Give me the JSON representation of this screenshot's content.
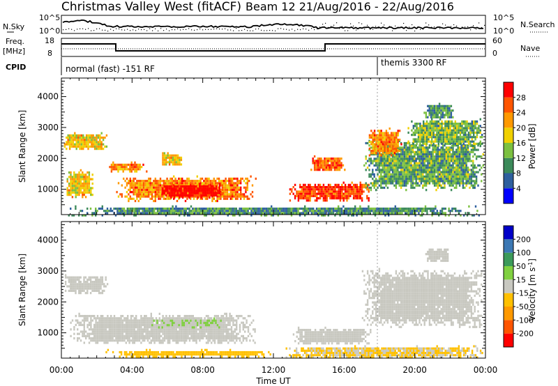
{
  "header": {
    "station": "Christmas Valley West (fitACF)",
    "beam_date": "Beam 12 21/Aug/2016 - 22/Aug/2016"
  },
  "summary_panels": {
    "nsky_label": "N.Sky",
    "nsky_ticks": [
      "10^5",
      "10^0"
    ],
    "nsearch_label": "N.Search",
    "nsearch_ticks": [
      "10^5",
      "10^0"
    ],
    "freq_label_1": "Freq.",
    "freq_label_2": "[MHz]",
    "freq_ticks": [
      "18",
      "8"
    ],
    "nave_label": "Nave",
    "nave_ticks": [
      "60",
      "0"
    ],
    "cpid_label": "CPID",
    "cpid_segments": [
      "normal (fast) -151 RF",
      "themis 3300 RF"
    ]
  },
  "colors": {
    "power_scale": [
      "#0000ff",
      "#2e5f9e",
      "#3c8a5a",
      "#7cc040",
      "#f0d000",
      "#ff9900",
      "#ff5500",
      "#ff0000"
    ],
    "velocity_scale": [
      "#ff0000",
      "#ff5500",
      "#ff9900",
      "#ffc000",
      "#c8c8c0",
      "#80d040",
      "#3c9a5a",
      "#3c78b4",
      "#0000c8"
    ]
  },
  "chart_data": [
    {
      "type": "heatmap",
      "panel": "power",
      "x": {
        "label": "Time UT",
        "ticks": [
          "00:00",
          "04:00",
          "08:00",
          "12:00",
          "16:00",
          "20:00",
          "00:00"
        ],
        "range_hours": [
          0,
          24
        ]
      },
      "y": {
        "label": "Slant Range [km]",
        "ticks": [
          1000,
          2000,
          3000,
          4000
        ],
        "range": [
          180,
          4600
        ]
      },
      "colorbar": {
        "label": "Power [dB]",
        "ticks": [
          "4",
          "8",
          "12",
          "16",
          "20",
          "24",
          "28"
        ],
        "range": [
          0,
          30
        ]
      },
      "regions": [
        {
          "t0": 0.05,
          "t1": 2.6,
          "r0": 2300,
          "r1": 2850,
          "v": 18
        },
        {
          "t0": 0.2,
          "t1": 1.8,
          "r0": 750,
          "r1": 1650,
          "v": 18
        },
        {
          "t0": 2.6,
          "t1": 4.8,
          "r0": 1600,
          "r1": 1900,
          "v": 22
        },
        {
          "t0": 3.0,
          "t1": 11.0,
          "r0": 650,
          "r1": 1450,
          "v": 22
        },
        {
          "t0": 5.5,
          "t1": 9.2,
          "r0": 750,
          "r1": 1200,
          "v": 30
        },
        {
          "t0": 5.6,
          "t1": 6.8,
          "r0": 1800,
          "r1": 2200,
          "v": 18
        },
        {
          "t0": 12.8,
          "t1": 17.5,
          "r0": 650,
          "r1": 1250,
          "v": 26
        },
        {
          "t0": 14.0,
          "t1": 16.0,
          "r0": 1600,
          "r1": 2100,
          "v": 24
        },
        {
          "t0": 17.0,
          "t1": 23.9,
          "r0": 1000,
          "r1": 2600,
          "v": 11
        },
        {
          "t0": 17.3,
          "t1": 19.2,
          "r0": 2100,
          "r1": 3000,
          "v": 22
        },
        {
          "t0": 19.5,
          "t1": 23.9,
          "r0": 2400,
          "r1": 3300,
          "v": 12
        },
        {
          "t0": 20.5,
          "t1": 22.2,
          "r0": 3300,
          "r1": 3800,
          "v": 10
        },
        {
          "t0": 0.0,
          "t1": 24.0,
          "r0": 180,
          "r1": 480,
          "v": 9
        }
      ]
    },
    {
      "type": "heatmap",
      "panel": "velocity",
      "x": {
        "label": "Time UT",
        "ticks": [
          "00:00",
          "04:00",
          "08:00",
          "12:00",
          "16:00",
          "20:00",
          "00:00"
        ],
        "range_hours": [
          0,
          24
        ]
      },
      "y": {
        "label": "Slant Range [km]",
        "ticks": [
          1000,
          2000,
          3000,
          4000
        ],
        "range": [
          180,
          4600
        ]
      },
      "colorbar": {
        "label": "Velocity [m s^-1]",
        "ticks": [
          "200",
          "100",
          "50",
          "15",
          "-15",
          "-50",
          "-100",
          "-200"
        ],
        "range": [
          -250,
          250
        ]
      },
      "regions": [
        {
          "t0": 0.1,
          "t1": 2.6,
          "r0": 2300,
          "r1": 2900,
          "v": 0
        },
        {
          "t0": 0.3,
          "t1": 11.0,
          "r0": 650,
          "r1": 1650,
          "v": 0
        },
        {
          "t0": 5.0,
          "t1": 9.0,
          "r0": 1200,
          "r1": 1500,
          "v": 25
        },
        {
          "t0": 2.5,
          "t1": 12.0,
          "r0": 250,
          "r1": 480,
          "v": -60
        },
        {
          "t0": 12.5,
          "t1": 23.9,
          "r0": 200,
          "r1": 600,
          "v": -30
        },
        {
          "t0": 13.0,
          "t1": 17.5,
          "r0": 650,
          "r1": 1200,
          "v": 0
        },
        {
          "t0": 17.0,
          "t1": 23.9,
          "r0": 1200,
          "r1": 3100,
          "v": 0
        },
        {
          "t0": 20.5,
          "t1": 22.0,
          "r0": 3300,
          "r1": 3800,
          "v": 0
        }
      ]
    }
  ]
}
